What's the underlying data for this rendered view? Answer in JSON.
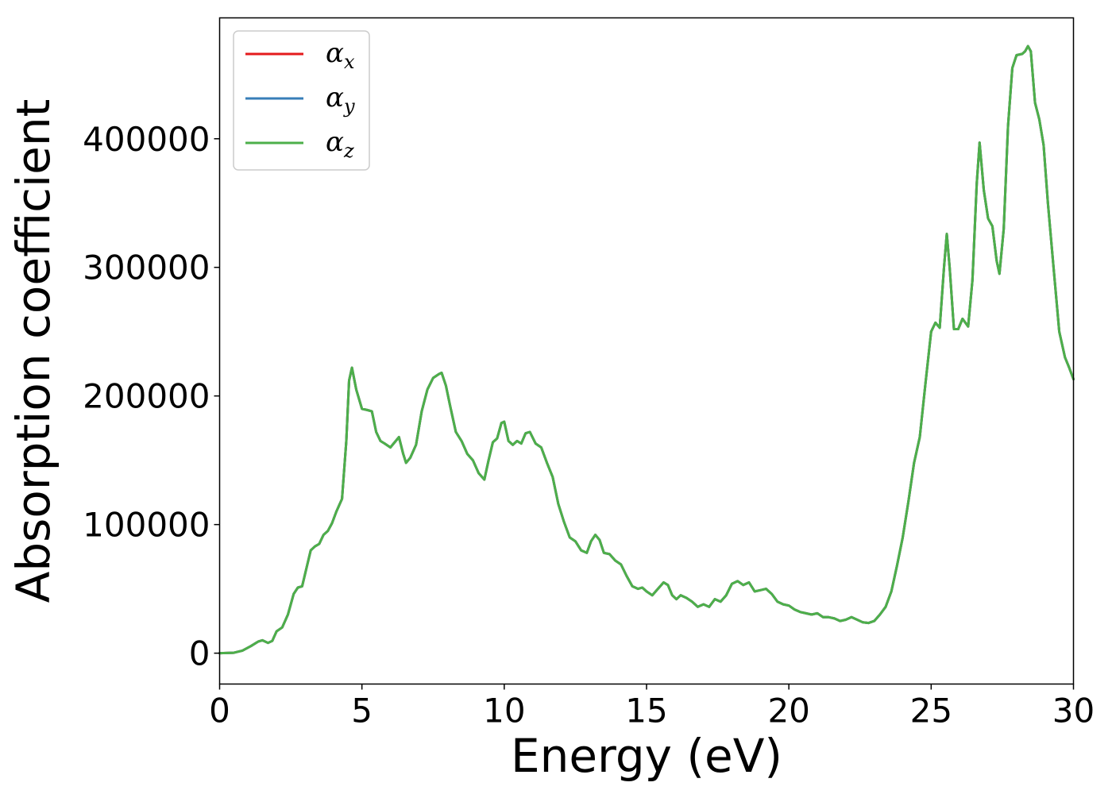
{
  "chart_data": {
    "type": "line",
    "title": "",
    "xlabel": "Energy (eV)",
    "ylabel": "Absorption coefficient",
    "xlim": [
      0,
      30
    ],
    "ylim": [
      -24000,
      494000
    ],
    "x_ticks": [
      0,
      5,
      10,
      15,
      20,
      25,
      30
    ],
    "x_tick_labels": [
      "0",
      "5",
      "10",
      "15",
      "20",
      "25",
      "30"
    ],
    "y_ticks": [
      0,
      100000,
      200000,
      300000,
      400000
    ],
    "y_tick_labels": [
      "0",
      "100000",
      "200000",
      "300000",
      "400000"
    ],
    "grid": false,
    "legend": {
      "placement": "top-left"
    },
    "series": [
      {
        "name": "αx",
        "legend_symbol": "α",
        "legend_subscript": "x",
        "color": "#e41a1c",
        "points": [
          [
            0,
            0
          ],
          [
            0.5,
            300
          ],
          [
            0.8,
            2000
          ],
          [
            1.1,
            5500
          ],
          [
            1.35,
            9000
          ],
          [
            1.5,
            10000
          ],
          [
            1.7,
            8000
          ],
          [
            1.85,
            9500
          ],
          [
            2.0,
            17000
          ],
          [
            2.2,
            20000
          ],
          [
            2.4,
            30000
          ],
          [
            2.6,
            46000
          ],
          [
            2.75,
            51000
          ],
          [
            2.9,
            52000
          ],
          [
            3.05,
            66000
          ],
          [
            3.2,
            80000
          ],
          [
            3.35,
            83000
          ],
          [
            3.5,
            85000
          ],
          [
            3.65,
            92000
          ],
          [
            3.8,
            95000
          ],
          [
            3.95,
            101000
          ],
          [
            4.1,
            110000
          ],
          [
            4.3,
            120000
          ],
          [
            4.45,
            165000
          ],
          [
            4.55,
            212000
          ],
          [
            4.65,
            222000
          ],
          [
            4.8,
            205000
          ],
          [
            5.0,
            190000
          ],
          [
            5.2,
            189000
          ],
          [
            5.35,
            188000
          ],
          [
            5.5,
            172000
          ],
          [
            5.65,
            165000
          ],
          [
            5.8,
            163000
          ],
          [
            6.0,
            160000
          ],
          [
            6.15,
            164000
          ],
          [
            6.3,
            168000
          ],
          [
            6.45,
            155000
          ],
          [
            6.55,
            148000
          ],
          [
            6.7,
            152000
          ],
          [
            6.9,
            162000
          ],
          [
            7.1,
            188000
          ],
          [
            7.3,
            205000
          ],
          [
            7.5,
            214000
          ],
          [
            7.7,
            217000
          ],
          [
            7.8,
            218000
          ],
          [
            7.95,
            208000
          ],
          [
            8.1,
            192000
          ],
          [
            8.3,
            172000
          ],
          [
            8.5,
            165000
          ],
          [
            8.7,
            155000
          ],
          [
            8.9,
            150000
          ],
          [
            9.1,
            140000
          ],
          [
            9.3,
            135000
          ],
          [
            9.45,
            150000
          ],
          [
            9.6,
            164000
          ],
          [
            9.75,
            167000
          ],
          [
            9.9,
            179000
          ],
          [
            10.0,
            180000
          ],
          [
            10.15,
            165000
          ],
          [
            10.3,
            162000
          ],
          [
            10.45,
            165000
          ],
          [
            10.6,
            163000
          ],
          [
            10.75,
            171000
          ],
          [
            10.9,
            172000
          ],
          [
            11.1,
            163000
          ],
          [
            11.3,
            160000
          ],
          [
            11.5,
            148000
          ],
          [
            11.7,
            137000
          ],
          [
            11.9,
            116000
          ],
          [
            12.1,
            102000
          ],
          [
            12.3,
            90000
          ],
          [
            12.5,
            87000
          ],
          [
            12.7,
            80000
          ],
          [
            12.9,
            78000
          ],
          [
            13.05,
            87000
          ],
          [
            13.2,
            92000
          ],
          [
            13.35,
            88000
          ],
          [
            13.5,
            78000
          ],
          [
            13.7,
            77000
          ],
          [
            13.9,
            72000
          ],
          [
            14.1,
            69000
          ],
          [
            14.3,
            60000
          ],
          [
            14.5,
            52000
          ],
          [
            14.7,
            50000
          ],
          [
            14.85,
            51000
          ],
          [
            15.0,
            48000
          ],
          [
            15.2,
            45000
          ],
          [
            15.4,
            50000
          ],
          [
            15.6,
            55000
          ],
          [
            15.75,
            53000
          ],
          [
            15.9,
            45000
          ],
          [
            16.05,
            42000
          ],
          [
            16.2,
            45000
          ],
          [
            16.4,
            43000
          ],
          [
            16.6,
            40000
          ],
          [
            16.8,
            36000
          ],
          [
            17.0,
            38000
          ],
          [
            17.2,
            36000
          ],
          [
            17.4,
            42000
          ],
          [
            17.6,
            40000
          ],
          [
            17.8,
            45000
          ],
          [
            18.0,
            54000
          ],
          [
            18.2,
            56000
          ],
          [
            18.4,
            53000
          ],
          [
            18.6,
            55000
          ],
          [
            18.8,
            48000
          ],
          [
            19.0,
            49000
          ],
          [
            19.2,
            50000
          ],
          [
            19.4,
            46000
          ],
          [
            19.6,
            40000
          ],
          [
            19.8,
            38000
          ],
          [
            20.0,
            37000
          ],
          [
            20.2,
            34000
          ],
          [
            20.4,
            32000
          ],
          [
            20.6,
            31000
          ],
          [
            20.8,
            30000
          ],
          [
            21.0,
            31000
          ],
          [
            21.2,
            28000
          ],
          [
            21.4,
            28000
          ],
          [
            21.6,
            27000
          ],
          [
            21.8,
            25000
          ],
          [
            22.0,
            26000
          ],
          [
            22.2,
            28000
          ],
          [
            22.4,
            26000
          ],
          [
            22.6,
            24000
          ],
          [
            22.8,
            23500
          ],
          [
            23.0,
            25000
          ],
          [
            23.2,
            30000
          ],
          [
            23.4,
            36000
          ],
          [
            23.6,
            48000
          ],
          [
            23.8,
            68000
          ],
          [
            24.0,
            90000
          ],
          [
            24.2,
            118000
          ],
          [
            24.4,
            148000
          ],
          [
            24.6,
            168000
          ],
          [
            24.8,
            210000
          ],
          [
            25.0,
            250000
          ],
          [
            25.15,
            257000
          ],
          [
            25.3,
            253000
          ],
          [
            25.45,
            300000
          ],
          [
            25.55,
            326000
          ],
          [
            25.65,
            300000
          ],
          [
            25.8,
            252000
          ],
          [
            25.95,
            252000
          ],
          [
            26.1,
            260000
          ],
          [
            26.3,
            254000
          ],
          [
            26.45,
            290000
          ],
          [
            26.6,
            365000
          ],
          [
            26.7,
            397000
          ],
          [
            26.85,
            360000
          ],
          [
            27.0,
            338000
          ],
          [
            27.15,
            332000
          ],
          [
            27.3,
            305000
          ],
          [
            27.4,
            295000
          ],
          [
            27.55,
            330000
          ],
          [
            27.7,
            410000
          ],
          [
            27.85,
            455000
          ],
          [
            28.0,
            465000
          ],
          [
            28.2,
            466000
          ],
          [
            28.3,
            468000
          ],
          [
            28.4,
            472000
          ],
          [
            28.5,
            468000
          ],
          [
            28.65,
            428000
          ],
          [
            28.8,
            415000
          ],
          [
            28.95,
            395000
          ],
          [
            29.1,
            350000
          ],
          [
            29.3,
            300000
          ],
          [
            29.5,
            250000
          ],
          [
            29.7,
            230000
          ],
          [
            29.85,
            222000
          ],
          [
            30.0,
            213000
          ]
        ]
      },
      {
        "name": "αy",
        "legend_symbol": "α",
        "legend_subscript": "y",
        "color": "#377eb8",
        "same_as": "αx"
      },
      {
        "name": "αz",
        "legend_symbol": "α",
        "legend_subscript": "z",
        "color": "#4daf4a",
        "same_as": "αx"
      }
    ]
  }
}
